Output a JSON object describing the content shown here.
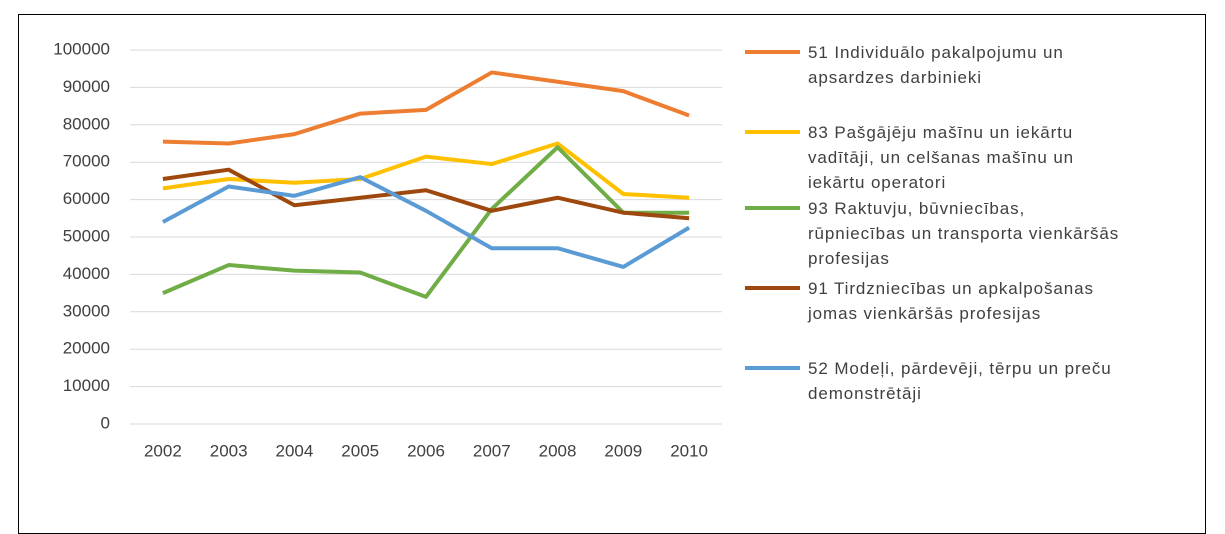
{
  "chart_data": {
    "type": "line",
    "categories": [
      "2002",
      "2003",
      "2004",
      "2005",
      "2006",
      "2007",
      "2008",
      "2009",
      "2010"
    ],
    "series": [
      {
        "name": "51 Individuālo pakalpojumu un apsardzes darbinieki",
        "color": "#ed7d31",
        "values": [
          75500,
          75000,
          77500,
          83000,
          84000,
          94000,
          91500,
          89000,
          82500
        ]
      },
      {
        "name": "83 Pašgājēju mašīnu un iekārtu vadītāji, un celšanas mašīnu un iekārtu operatori",
        "color": "#ffc000",
        "values": [
          63000,
          65500,
          64500,
          65500,
          71500,
          69500,
          75000,
          61500,
          60500
        ]
      },
      {
        "name": "93 Raktuvju, būvniecības, rūpniecības un transporta vienkāršās profesijas",
        "color": "#70ad47",
        "values": [
          35000,
          42500,
          41000,
          40500,
          34000,
          57500,
          74000,
          56500,
          56500
        ]
      },
      {
        "name": "91 Tirdzniecības un apkalpošanas jomas vienkāršās profesijas",
        "color": "#9e480e",
        "values": [
          65500,
          68000,
          58500,
          60500,
          62500,
          57000,
          60500,
          56500,
          55000
        ]
      },
      {
        "name": "52 Modeļi, pārdevēji, tērpu un preču demonstrētāji",
        "color": "#5b9bd5",
        "values": [
          54000,
          63500,
          61000,
          66000,
          57000,
          47000,
          47000,
          42000,
          52500
        ]
      }
    ],
    "ylim": [
      0,
      100000
    ],
    "yticks": [
      0,
      10000,
      20000,
      30000,
      40000,
      50000,
      60000,
      70000,
      80000,
      90000,
      100000
    ],
    "grid": true
  }
}
